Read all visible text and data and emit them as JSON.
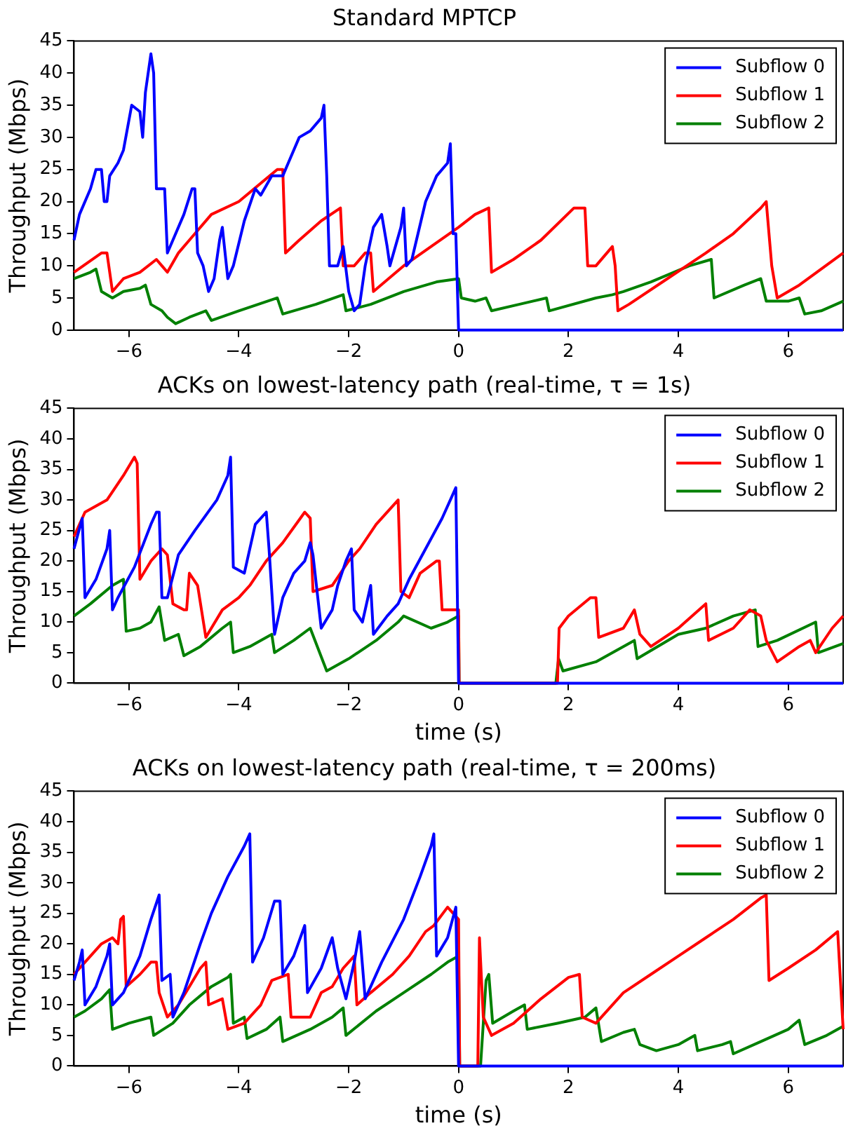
{
  "chart_data": [
    {
      "type": "line",
      "title": "Standard MPTCP",
      "ylabel": "Throughput (Mbps)",
      "xlim": [
        -7,
        7
      ],
      "ylim": [
        0,
        45
      ],
      "xticks": [
        {
          "value": -6,
          "label": "−6"
        },
        {
          "value": -4,
          "label": "−4"
        },
        {
          "value": -2,
          "label": "−2"
        },
        0,
        2,
        4,
        6
      ],
      "yticks": [
        0,
        5,
        10,
        15,
        20,
        25,
        30,
        35,
        40,
        45
      ],
      "grid": false,
      "legend": "top right",
      "marker": "none",
      "line_style": "solid",
      "series": [
        {
          "name": "Subflow 0",
          "color": "#0000ff",
          "x": [
            -7,
            -6.9,
            -6.7,
            -6.6,
            -6.5,
            -6.45,
            -6.4,
            -6.35,
            -6.2,
            -6.1,
            -5.95,
            -5.8,
            -5.75,
            -5.7,
            -5.6,
            -5.55,
            -5.5,
            -5.35,
            -5.3,
            -5.2,
            -5.0,
            -4.85,
            -4.8,
            -4.75,
            -4.65,
            -4.55,
            -4.45,
            -4.35,
            -4.3,
            -4.2,
            -4.1,
            -3.9,
            -3.7,
            -3.6,
            -3.4,
            -3.2,
            -3.1,
            -2.9,
            -2.7,
            -2.5,
            -2.45,
            -2.4,
            -2.35,
            -2.2,
            -2.1,
            -2.0,
            -1.9,
            -1.8,
            -1.7,
            -1.55,
            -1.4,
            -1.3,
            -1.25,
            -1.05,
            -1.0,
            -0.95,
            -0.85,
            -0.6,
            -0.4,
            -0.2,
            -0.15,
            -0.1,
            -0.05,
            0,
            7
          ],
          "values": [
            14,
            18,
            22,
            25,
            25,
            20,
            20,
            24,
            26,
            28,
            35,
            34,
            30,
            37,
            43,
            40,
            22,
            22,
            12,
            14,
            18,
            22,
            22,
            12,
            10,
            6,
            8,
            14,
            16,
            8,
            10,
            17,
            22,
            21,
            24,
            24,
            26,
            30,
            31,
            33,
            35,
            24,
            10,
            10,
            13,
            6,
            3,
            4,
            10,
            16,
            18,
            13,
            10,
            16,
            19,
            10,
            11,
            20,
            24,
            26,
            29,
            15,
            15,
            0,
            0
          ]
        },
        {
          "name": "Subflow 1",
          "color": "#ff0000",
          "x": [
            -7,
            -6.5,
            -6.4,
            -6.3,
            -6.1,
            -5.8,
            -5.5,
            -5.4,
            -5.3,
            -5.1,
            -4.9,
            -4.5,
            -4.0,
            -3.3,
            -3.2,
            -3.15,
            -2.9,
            -2.5,
            -2.15,
            -2.1,
            -1.9,
            -1.7,
            -1.6,
            -1.55,
            -1.0,
            -0.5,
            0,
            0.3,
            0.55,
            0.6,
            1.0,
            1.5,
            2.1,
            2.3,
            2.35,
            2.5,
            2.8,
            2.85,
            2.9,
            3.1,
            3.8,
            4.5,
            5.0,
            5.5,
            5.6,
            5.7,
            5.8,
            6.2,
            7
          ],
          "values": [
            9,
            12,
            12,
            6,
            8,
            9,
            11,
            10,
            9,
            12,
            14,
            18,
            20,
            25,
            25,
            12,
            14,
            17,
            19,
            10,
            10,
            12,
            12,
            6,
            10,
            13,
            16,
            18,
            19,
            9,
            11,
            14,
            19,
            19,
            10,
            10,
            13,
            10,
            3,
            4,
            8,
            12,
            15,
            19,
            20,
            10,
            5,
            7,
            12
          ]
        },
        {
          "name": "Subflow 2",
          "color": "#008000",
          "x": [
            -7,
            -6.7,
            -6.6,
            -6.5,
            -6.3,
            -6.1,
            -5.8,
            -5.7,
            -5.6,
            -5.4,
            -5.3,
            -5.15,
            -4.9,
            -4.6,
            -4.5,
            -4.0,
            -3.3,
            -3.2,
            -2.6,
            -2.1,
            -2.05,
            -1.6,
            -1.0,
            -0.4,
            0,
            0.05,
            0.3,
            0.5,
            0.6,
            1.1,
            1.6,
            1.65,
            2.5,
            2.8,
            3.0,
            3.5,
            4.2,
            4.6,
            4.65,
            5.2,
            5.5,
            5.6,
            6.0,
            6.2,
            6.3,
            6.6,
            7
          ],
          "values": [
            8,
            9,
            9.5,
            6,
            5,
            6,
            6.5,
            7,
            4,
            3,
            2,
            1,
            2,
            3,
            1.5,
            3,
            5,
            2.5,
            4,
            5.5,
            3,
            4,
            6,
            7.5,
            8,
            5,
            4.5,
            5,
            3,
            4,
            5,
            3,
            5,
            5.5,
            6,
            7.5,
            10,
            11,
            5,
            7,
            8,
            4.5,
            4.5,
            5,
            2.5,
            3,
            4.5
          ]
        }
      ]
    },
    {
      "type": "line",
      "title": "ACKs on lowest-latency path (real-time, τ = 1s)",
      "xlabel": "time (s)",
      "ylabel": "Throughput (Mbps)",
      "xlim": [
        -7,
        7
      ],
      "ylim": [
        0,
        45
      ],
      "xticks": [
        {
          "value": -6,
          "label": "−6"
        },
        {
          "value": -4,
          "label": "−4"
        },
        {
          "value": -2,
          "label": "−2"
        },
        0,
        2,
        4,
        6
      ],
      "yticks": [
        0,
        5,
        10,
        15,
        20,
        25,
        30,
        35,
        40,
        45
      ],
      "grid": false,
      "legend": "top right",
      "marker": "none",
      "line_style": "solid",
      "series": [
        {
          "name": "Subflow 0",
          "color": "#0000ff",
          "x": [
            -7,
            -6.85,
            -6.8,
            -6.6,
            -6.4,
            -6.35,
            -6.3,
            -6.2,
            -5.9,
            -5.6,
            -5.5,
            -5.45,
            -5.4,
            -5.3,
            -5.1,
            -4.8,
            -4.4,
            -4.2,
            -4.15,
            -4.1,
            -3.9,
            -3.7,
            -3.5,
            -3.45,
            -3.35,
            -3.2,
            -3.0,
            -2.8,
            -2.7,
            -2.65,
            -2.5,
            -2.3,
            -2.2,
            -2.05,
            -1.95,
            -1.9,
            -1.75,
            -1.6,
            -1.55,
            -1.3,
            -1.1,
            -0.9,
            -0.6,
            -0.3,
            -0.1,
            -0.05,
            0,
            7
          ],
          "values": [
            22,
            27,
            14,
            17,
            22,
            25,
            12,
            14,
            19,
            26,
            28,
            28,
            14,
            14,
            21,
            25,
            30,
            34,
            37,
            19,
            18,
            26,
            28,
            22,
            8,
            14,
            18,
            20,
            23,
            21,
            9,
            12,
            16,
            20,
            22,
            12,
            10,
            16,
            8,
            11,
            13,
            17,
            22,
            27,
            31,
            32,
            0,
            0
          ]
        },
        {
          "name": "Subflow 1",
          "color": "#ff0000",
          "x": [
            -7,
            -6.8,
            -6.4,
            -6.1,
            -5.9,
            -5.85,
            -5.8,
            -5.6,
            -5.4,
            -5.3,
            -5.2,
            -5.0,
            -4.95,
            -4.9,
            -4.75,
            -4.6,
            -4.3,
            -4.0,
            -3.8,
            -3.5,
            -3.2,
            -2.8,
            -2.7,
            -2.65,
            -2.3,
            -2.0,
            -1.8,
            -1.5,
            -1.1,
            -1.05,
            -0.9,
            -0.7,
            -0.4,
            -0.35,
            -0.3,
            -0.1,
            0,
            0.01,
            1.8,
            1.83,
            2.0,
            2.4,
            2.5,
            2.55,
            3.0,
            3.2,
            3.3,
            3.5,
            4.0,
            4.5,
            4.55,
            5.0,
            5.3,
            5.5,
            5.6,
            5.8,
            6.2,
            6.4,
            6.5,
            6.8,
            7
          ],
          "values": [
            24,
            28,
            30,
            34,
            37,
            36,
            17,
            20,
            22,
            21,
            13,
            12,
            12,
            18,
            16,
            7.5,
            12,
            14,
            16,
            20,
            23,
            28,
            27,
            15,
            16,
            20,
            22,
            26,
            30,
            15,
            14,
            18,
            20,
            20,
            12,
            12,
            12,
            0,
            0,
            9,
            11,
            14,
            14,
            7.5,
            9,
            12,
            8,
            6,
            9,
            13,
            7,
            9,
            12,
            11,
            7,
            3.5,
            6,
            7,
            5,
            9,
            11
          ]
        },
        {
          "name": "Subflow 2",
          "color": "#008000",
          "x": [
            -7,
            -6.7,
            -6.3,
            -6.1,
            -6.05,
            -5.8,
            -5.6,
            -5.45,
            -5.35,
            -5.1,
            -5.0,
            -4.7,
            -4.3,
            -4.15,
            -4.1,
            -3.8,
            -3.4,
            -3.35,
            -3.0,
            -2.7,
            -2.55,
            -2.4,
            -2.0,
            -1.5,
            -1.1,
            -1.0,
            -0.5,
            -0.2,
            0,
            0.01,
            1.77,
            1.82,
            1.9,
            2.5,
            3.2,
            3.25,
            4.0,
            4.5,
            5.0,
            5.4,
            5.45,
            5.8,
            6.5,
            6.55,
            7
          ],
          "values": [
            11,
            13,
            16,
            17,
            8.5,
            9,
            10,
            12.5,
            7,
            8,
            4.5,
            6,
            9,
            10,
            5,
            6,
            8,
            5,
            7,
            9,
            5.5,
            2,
            4,
            7,
            10,
            11,
            9,
            10,
            11,
            0,
            0,
            4,
            2,
            3.5,
            7,
            4,
            8,
            9,
            11,
            12,
            6,
            7,
            10,
            5,
            6.5
          ]
        }
      ]
    },
    {
      "type": "line",
      "title": "ACKs on lowest-latency path (real-time, τ = 200ms)",
      "xlabel": "time (s)",
      "ylabel": "Throughput (Mbps)",
      "xlim": [
        -7,
        7
      ],
      "ylim": [
        0,
        45
      ],
      "xticks": [
        {
          "value": -6,
          "label": "−6"
        },
        {
          "value": -4,
          "label": "−4"
        },
        {
          "value": -2,
          "label": "−2"
        },
        0,
        2,
        4,
        6
      ],
      "yticks": [
        0,
        5,
        10,
        15,
        20,
        25,
        30,
        35,
        40,
        45
      ],
      "grid": false,
      "legend": "top right",
      "marker": "none",
      "line_style": "solid",
      "series": [
        {
          "name": "Subflow 0",
          "color": "#0000ff",
          "x": [
            -7,
            -6.9,
            -6.85,
            -6.8,
            -6.6,
            -6.4,
            -6.35,
            -6.3,
            -6.1,
            -5.8,
            -5.6,
            -5.45,
            -5.4,
            -5.25,
            -5.2,
            -5.0,
            -4.7,
            -4.5,
            -4.2,
            -3.9,
            -3.8,
            -3.75,
            -3.55,
            -3.35,
            -3.25,
            -3.2,
            -3.0,
            -2.8,
            -2.75,
            -2.5,
            -2.3,
            -2.2,
            -2.05,
            -1.9,
            -1.8,
            -1.7,
            -1.4,
            -1.0,
            -0.7,
            -0.5,
            -0.45,
            -0.4,
            -0.2,
            -0.05,
            0,
            7
          ],
          "values": [
            14,
            17,
            19,
            10,
            13,
            18,
            20,
            10,
            12,
            18,
            24,
            28,
            14,
            15,
            8,
            12,
            20,
            25,
            31,
            36,
            38,
            17,
            21,
            27,
            27,
            15,
            18,
            23,
            12,
            16,
            21,
            16,
            11,
            17,
            22,
            11,
            17,
            24,
            31,
            36,
            38,
            18,
            21,
            26,
            0,
            0
          ]
        },
        {
          "name": "Subflow 1",
          "color": "#ff0000",
          "x": [
            -7,
            -6.8,
            -6.5,
            -6.3,
            -6.2,
            -6.15,
            -6.1,
            -6.05,
            -5.8,
            -5.6,
            -5.5,
            -5.45,
            -5.3,
            -5.1,
            -4.9,
            -4.7,
            -4.6,
            -4.55,
            -4.3,
            -4.2,
            -3.9,
            -3.8,
            -3.6,
            -3.4,
            -3.1,
            -3.05,
            -2.7,
            -2.5,
            -2.3,
            -2.1,
            -1.9,
            -1.85,
            -1.6,
            -1.2,
            -0.9,
            -0.6,
            -0.45,
            -0.2,
            -0.1,
            0,
            0.02,
            0.35,
            0.38,
            0.45,
            0.6,
            1.0,
            1.5,
            2.0,
            2.2,
            2.25,
            2.5,
            3.0,
            3.5,
            4.0,
            4.5,
            5.0,
            5.5,
            5.6,
            5.65,
            6.0,
            6.5,
            6.9,
            7
          ],
          "values": [
            15,
            17,
            20,
            21,
            20,
            24,
            24.5,
            13,
            15,
            17,
            17,
            12,
            8,
            10,
            13,
            16,
            17,
            10,
            11,
            6,
            7,
            8,
            10,
            14,
            15,
            8,
            8,
            12,
            13,
            16,
            18,
            10,
            12,
            15,
            18,
            22,
            23,
            26,
            25,
            24,
            0,
            0,
            21,
            8,
            5,
            7,
            11,
            14.5,
            15,
            8,
            7,
            12,
            15,
            18,
            21,
            24,
            27.5,
            28,
            14,
            16,
            19,
            22,
            6
          ]
        },
        {
          "name": "Subflow 2",
          "color": "#008000",
          "x": [
            -7,
            -6.8,
            -6.5,
            -6.35,
            -6.3,
            -6.0,
            -5.6,
            -5.55,
            -5.2,
            -4.9,
            -4.5,
            -4.2,
            -4.15,
            -4.1,
            -3.9,
            -3.85,
            -3.5,
            -3.25,
            -3.2,
            -2.7,
            -2.3,
            -2.1,
            -2.05,
            -1.5,
            -1.0,
            -0.5,
            -0.2,
            0,
            0.02,
            0.4,
            0.5,
            0.55,
            0.62,
            1.0,
            1.2,
            1.25,
            1.8,
            2.3,
            2.5,
            2.6,
            3.0,
            3.2,
            3.3,
            3.6,
            4.0,
            4.3,
            4.35,
            4.8,
            4.95,
            5.0,
            5.5,
            6.0,
            6.2,
            6.3,
            6.7,
            7
          ],
          "values": [
            8,
            9,
            11,
            12.5,
            6,
            7,
            8,
            5,
            7,
            10,
            13,
            14.5,
            15,
            7,
            8,
            4.5,
            6,
            8,
            4,
            6,
            8,
            9.5,
            5,
            9,
            12,
            15,
            17,
            18,
            0,
            0,
            14,
            15,
            7,
            9,
            10,
            6,
            7,
            8,
            9.5,
            4,
            5.5,
            6,
            3.5,
            2.5,
            3.5,
            5,
            2.5,
            3.5,
            4,
            2,
            4,
            6,
            7.5,
            3.5,
            5,
            6.5
          ]
        }
      ]
    }
  ]
}
